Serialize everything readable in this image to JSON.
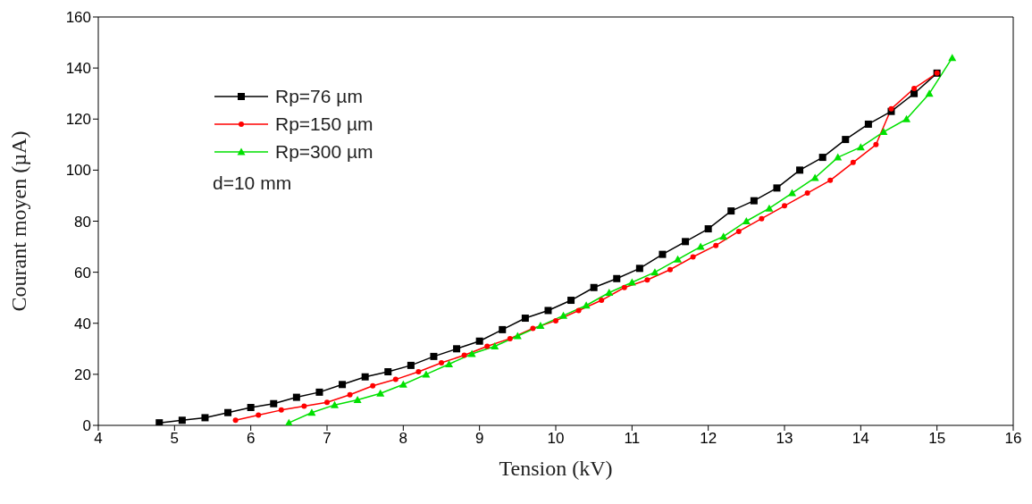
{
  "chart_data": {
    "type": "line",
    "xlabel": "Tension (kV)",
    "ylabel": "Courant moyen (µA)",
    "xlim": [
      4,
      16
    ],
    "xticks": [
      4,
      5,
      6,
      7,
      8,
      9,
      10,
      11,
      12,
      13,
      14,
      15,
      16
    ],
    "ylim": [
      0,
      160
    ],
    "yticks": [
      0,
      20,
      40,
      60,
      80,
      100,
      120,
      140,
      160
    ],
    "grid": false,
    "legend": "top left",
    "line_style": "solid",
    "annotations": [
      "d=10 mm"
    ],
    "series": [
      {
        "name": "Rp=76 µm",
        "color": "#000000",
        "marker": "square",
        "x": [
          4.8,
          5.1,
          5.4,
          5.7,
          6.0,
          6.3,
          6.6,
          6.9,
          7.2,
          7.5,
          7.8,
          8.1,
          8.4,
          8.7,
          9.0,
          9.3,
          9.6,
          9.9,
          10.2,
          10.5,
          10.8,
          11.1,
          11.4,
          11.7,
          12.0,
          12.3,
          12.6,
          12.9,
          13.2,
          13.5,
          13.8,
          14.1,
          14.4,
          14.7,
          15.0
        ],
        "values": [
          1,
          2,
          3,
          5,
          7,
          8.5,
          11,
          13,
          16,
          19,
          21,
          23.5,
          27,
          30,
          33,
          37.5,
          42,
          45,
          49,
          54,
          57.5,
          61.5,
          67,
          72,
          77,
          84,
          88,
          93,
          100,
          105,
          112,
          118,
          123,
          130,
          138
        ]
      },
      {
        "name": "Rp=150 µm",
        "color": "#ff0000",
        "marker": "circle",
        "x": [
          5.8,
          6.1,
          6.4,
          6.7,
          7.0,
          7.3,
          7.6,
          7.9,
          8.2,
          8.5,
          8.8,
          9.1,
          9.4,
          9.7,
          10.0,
          10.3,
          10.6,
          10.9,
          11.2,
          11.5,
          11.8,
          12.1,
          12.4,
          12.7,
          13.0,
          13.3,
          13.6,
          13.9,
          14.2,
          14.4,
          14.7,
          15.0
        ],
        "values": [
          2,
          4,
          6,
          7.5,
          9,
          12,
          15.5,
          18,
          21,
          24.5,
          27.5,
          31,
          34,
          38,
          41,
          45,
          49,
          54,
          57,
          61,
          66,
          70.5,
          76,
          81,
          86,
          91,
          96,
          103,
          110,
          124,
          132,
          138
        ]
      },
      {
        "name": "Rp=300 µm",
        "color": "#00e000",
        "marker": "triangle",
        "x": [
          6.5,
          6.8,
          7.1,
          7.4,
          7.7,
          8.0,
          8.3,
          8.6,
          8.9,
          9.2,
          9.5,
          9.8,
          10.1,
          10.4,
          10.7,
          11.0,
          11.3,
          11.6,
          11.9,
          12.2,
          12.5,
          12.8,
          13.1,
          13.4,
          13.7,
          14.0,
          14.3,
          14.6,
          14.9,
          15.2
        ],
        "values": [
          1,
          5,
          8,
          10,
          12.5,
          16,
          20,
          24,
          28,
          31,
          35,
          39,
          43,
          47,
          52,
          56,
          60,
          65,
          70,
          74,
          80,
          85,
          91,
          97,
          105,
          109,
          115,
          120,
          130,
          144
        ]
      }
    ]
  }
}
